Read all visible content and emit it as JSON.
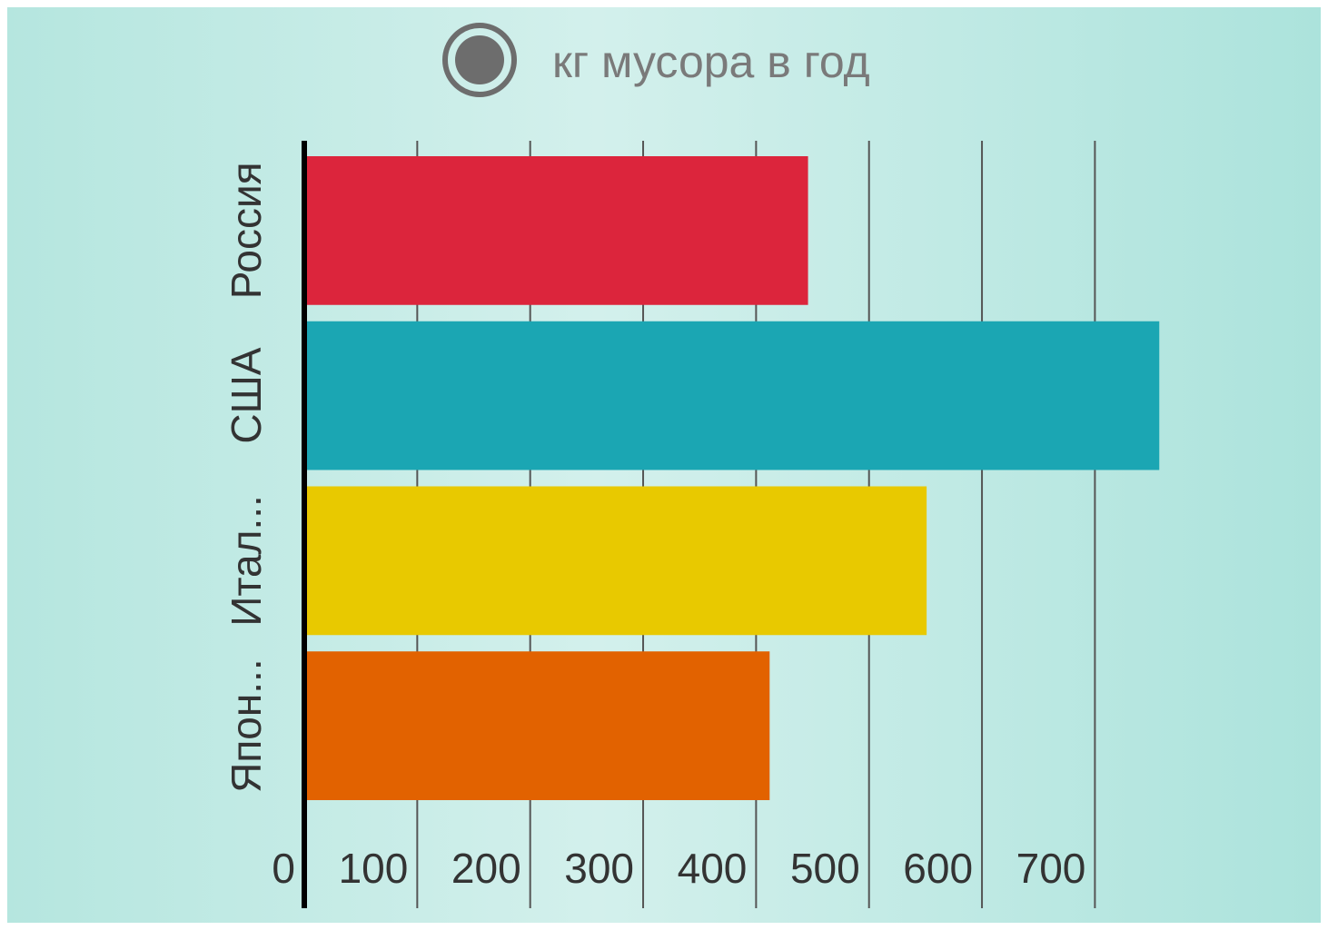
{
  "chart_data": {
    "type": "barh",
    "categories": [
      "Россия",
      "США",
      "Итал...",
      "Япон..."
    ],
    "series": [
      {
        "name": "кг мусора в год",
        "colors": [
          "#dc253c",
          "#1ba6b3",
          "#e8c900",
          "#e26200"
        ],
        "values": [
          446,
          757,
          551,
          412
        ]
      }
    ],
    "legend_color": "#6d6d6d",
    "xlim": [
      0,
      760
    ],
    "xticks": [
      0,
      100,
      200,
      300,
      400,
      500,
      600,
      700
    ],
    "grid": true
  }
}
